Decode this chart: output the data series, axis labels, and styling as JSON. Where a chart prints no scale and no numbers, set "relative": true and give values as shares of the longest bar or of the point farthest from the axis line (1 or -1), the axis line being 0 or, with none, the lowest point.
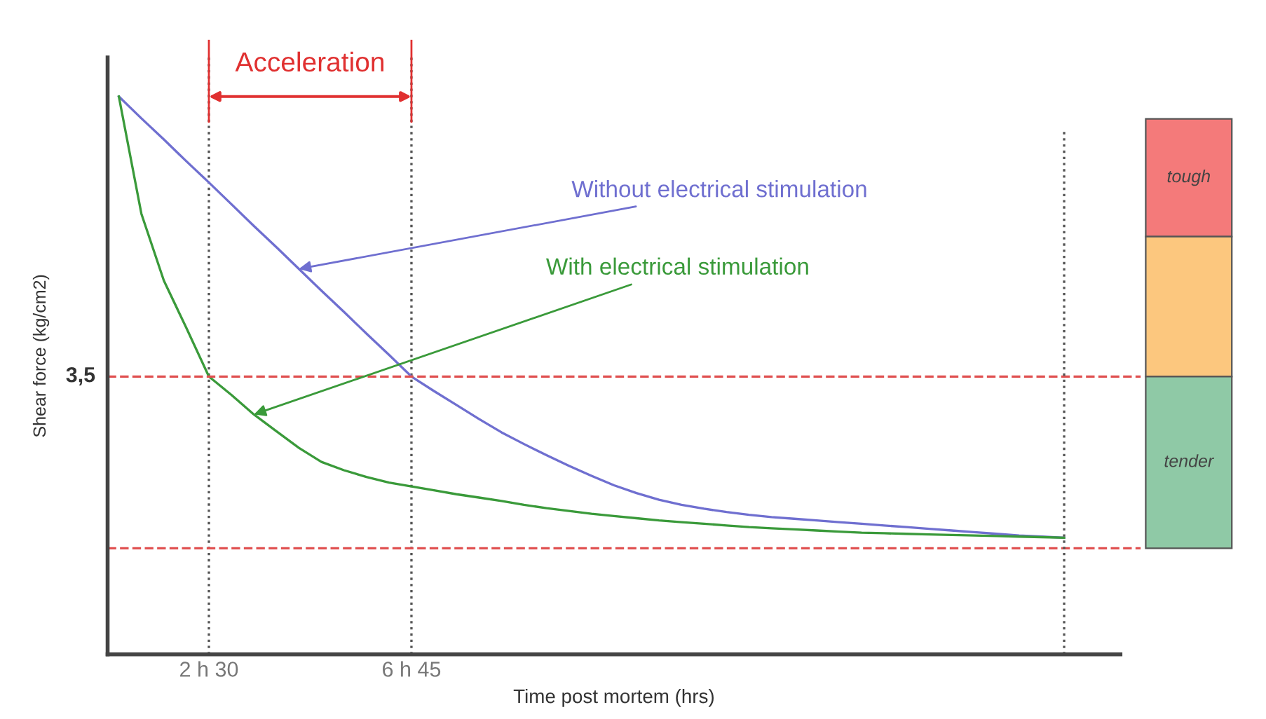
{
  "chart_data": {
    "type": "line",
    "relative": true,
    "xlabel": "Time post mortem (hrs)",
    "ylabel": "Shear force (kg/cm2)",
    "categories": [
      null,
      null,
      null,
      null,
      "2 h 30",
      null,
      null,
      null,
      null,
      null,
      null,
      null,
      null,
      "6 h 45",
      null,
      null,
      null,
      null,
      null,
      null,
      null,
      null,
      null,
      null,
      null,
      null,
      null,
      null,
      null,
      null,
      null,
      null,
      null,
      null,
      null,
      null,
      null,
      null,
      null,
      null,
      null,
      null,
      null
    ],
    "tick_labels": "x",
    "grid": "x",
    "legend": false,
    "marker": "none",
    "line_style": "solid",
    "series": [
      {
        "name": "Without electrical stimulation",
        "color": "#6f6fd0",
        "values": [
          1.0,
          0.961,
          0.923,
          0.884,
          0.846,
          0.807,
          0.768,
          0.73,
          0.691,
          0.652,
          0.614,
          0.575,
          0.537,
          0.498,
          0.472,
          0.447,
          0.422,
          0.398,
          0.377,
          0.357,
          0.338,
          0.32,
          0.303,
          0.289,
          0.277,
          0.268,
          0.261,
          0.255,
          0.25,
          0.246,
          0.243,
          0.24,
          0.237,
          0.234,
          0.231,
          0.228,
          0.225,
          0.222,
          0.219,
          0.216,
          0.213,
          0.211,
          0.209
        ]
      },
      {
        "name": "With electrical stimulation",
        "color": "#3a9a3a",
        "values": [
          1.0,
          0.79,
          0.67,
          0.585,
          0.498,
          0.465,
          0.43,
          0.4,
          0.37,
          0.345,
          0.33,
          0.318,
          0.308,
          0.301,
          0.294,
          0.287,
          0.281,
          0.275,
          0.268,
          0.262,
          0.257,
          0.252,
          0.248,
          0.244,
          0.24,
          0.237,
          0.234,
          0.231,
          0.228,
          0.226,
          0.224,
          0.222,
          0.22,
          0.218,
          0.217,
          0.216,
          0.215,
          0.214,
          0.213,
          0.212,
          0.211,
          0.21,
          0.209
        ]
      }
    ],
    "annotations": [
      "Acceleration",
      "3,5",
      "tough",
      "tender"
    ],
    "ref_lines": [
      {
        "axis": "y",
        "value": 0.498,
        "color": "#e05050",
        "line_style": "dashed"
      },
      {
        "axis": "y",
        "value": 0.19,
        "color": "#e05050",
        "line_style": "dashed"
      }
    ]
  }
}
